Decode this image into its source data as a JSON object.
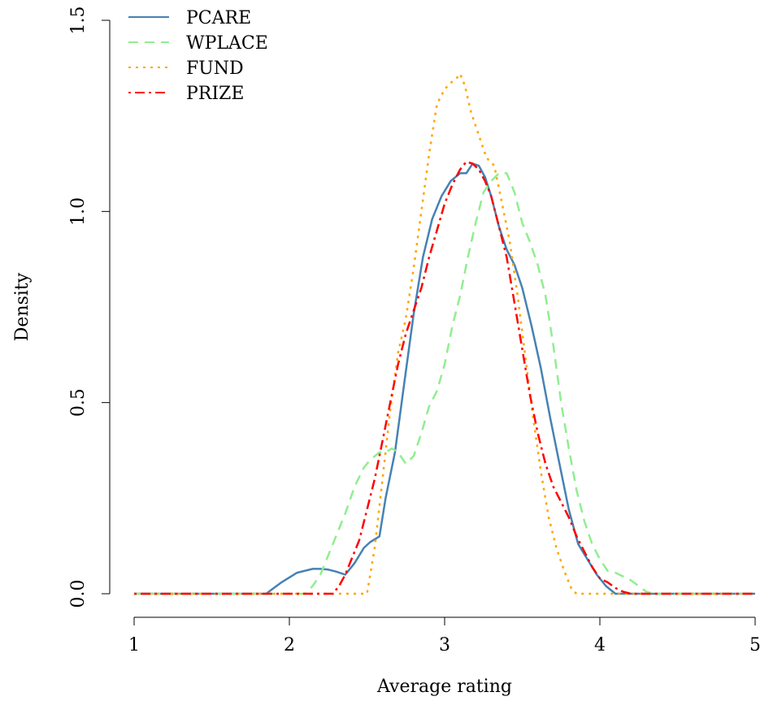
{
  "chart_data": {
    "type": "line",
    "xlabel": "Average rating",
    "ylabel": "Density",
    "xlim": [
      1,
      5
    ],
    "ylim": [
      0,
      1.5
    ],
    "xticks": [
      "1",
      "2",
      "3",
      "4",
      "5"
    ],
    "yticks": [
      "0.0",
      "0.5",
      "1.0",
      "1.5"
    ],
    "grid": false,
    "legend_position": "top-left",
    "series": [
      {
        "name": "PCARE",
        "color": "#4682b4",
        "dash": "solid",
        "x": [
          1.0,
          1.85,
          1.95,
          2.05,
          2.15,
          2.2,
          2.25,
          2.3,
          2.36,
          2.42,
          2.48,
          2.52,
          2.58,
          2.62,
          2.68,
          2.74,
          2.8,
          2.86,
          2.92,
          2.98,
          3.04,
          3.1,
          3.14,
          3.18,
          3.22,
          3.26,
          3.3,
          3.35,
          3.4,
          3.45,
          3.5,
          3.56,
          3.62,
          3.68,
          3.74,
          3.8,
          3.86,
          3.92,
          3.98,
          4.04,
          4.1,
          5.0
        ],
        "y": [
          0.0,
          0.0,
          0.03,
          0.055,
          0.065,
          0.065,
          0.063,
          0.058,
          0.05,
          0.08,
          0.12,
          0.135,
          0.15,
          0.25,
          0.37,
          0.55,
          0.73,
          0.88,
          0.98,
          1.04,
          1.08,
          1.1,
          1.1,
          1.125,
          1.12,
          1.09,
          1.04,
          0.96,
          0.9,
          0.86,
          0.8,
          0.7,
          0.59,
          0.46,
          0.34,
          0.22,
          0.13,
          0.09,
          0.05,
          0.02,
          0.0,
          0.0
        ]
      },
      {
        "name": "WPLACE",
        "color": "#90ee90",
        "dash": "dashed",
        "x": [
          1.0,
          2.1,
          2.15,
          2.2,
          2.25,
          2.3,
          2.36,
          2.42,
          2.48,
          2.52,
          2.58,
          2.62,
          2.66,
          2.7,
          2.75,
          2.8,
          2.85,
          2.9,
          2.95,
          3.0,
          3.05,
          3.1,
          3.15,
          3.2,
          3.25,
          3.3,
          3.35,
          3.4,
          3.45,
          3.5,
          3.55,
          3.6,
          3.65,
          3.7,
          3.75,
          3.8,
          3.85,
          3.9,
          3.95,
          4.0,
          4.05,
          4.1,
          4.15,
          4.2,
          4.25,
          4.3,
          4.35,
          5.0
        ],
        "y": [
          0.0,
          0.0,
          0.02,
          0.05,
          0.1,
          0.15,
          0.21,
          0.28,
          0.33,
          0.35,
          0.37,
          0.37,
          0.38,
          0.37,
          0.34,
          0.36,
          0.42,
          0.49,
          0.53,
          0.6,
          0.7,
          0.78,
          0.88,
          0.97,
          1.05,
          1.08,
          1.1,
          1.1,
          1.05,
          0.97,
          0.92,
          0.86,
          0.78,
          0.65,
          0.5,
          0.38,
          0.27,
          0.19,
          0.13,
          0.09,
          0.06,
          0.055,
          0.045,
          0.035,
          0.02,
          0.005,
          0.0,
          0.0
        ]
      },
      {
        "name": "FUND",
        "color": "#ffa500",
        "dash": "dotted",
        "x": [
          1.0,
          2.5,
          2.55,
          2.6,
          2.65,
          2.7,
          2.75,
          2.8,
          2.85,
          2.9,
          2.95,
          3.0,
          3.05,
          3.08,
          3.1,
          3.13,
          3.17,
          3.22,
          3.27,
          3.32,
          3.37,
          3.42,
          3.47,
          3.52,
          3.57,
          3.62,
          3.67,
          3.72,
          3.77,
          3.82,
          3.85,
          5.0
        ],
        "y": [
          0.0,
          0.0,
          0.12,
          0.3,
          0.48,
          0.63,
          0.72,
          0.85,
          1.0,
          1.15,
          1.28,
          1.32,
          1.34,
          1.35,
          1.36,
          1.33,
          1.26,
          1.2,
          1.14,
          1.12,
          1.02,
          0.92,
          0.78,
          0.62,
          0.46,
          0.32,
          0.2,
          0.12,
          0.06,
          0.01,
          0.0,
          0.0
        ]
      },
      {
        "name": "PRIZE",
        "color": "#ff0000",
        "dash": "dashdot",
        "x": [
          1.0,
          2.28,
          2.32,
          2.36,
          2.4,
          2.45,
          2.5,
          2.55,
          2.6,
          2.65,
          2.7,
          2.75,
          2.8,
          2.85,
          2.9,
          2.95,
          3.0,
          3.05,
          3.1,
          3.14,
          3.18,
          3.22,
          3.26,
          3.3,
          3.35,
          3.4,
          3.45,
          3.5,
          3.55,
          3.6,
          3.65,
          3.7,
          3.75,
          3.8,
          3.85,
          3.9,
          3.95,
          4.0,
          4.05,
          4.1,
          4.15,
          4.2,
          5.0
        ],
        "y": [
          0.0,
          0.0,
          0.02,
          0.05,
          0.09,
          0.14,
          0.22,
          0.3,
          0.4,
          0.5,
          0.6,
          0.68,
          0.74,
          0.8,
          0.88,
          0.95,
          1.02,
          1.07,
          1.11,
          1.13,
          1.125,
          1.11,
          1.08,
          1.04,
          0.96,
          0.88,
          0.76,
          0.64,
          0.52,
          0.42,
          0.34,
          0.28,
          0.24,
          0.2,
          0.15,
          0.11,
          0.07,
          0.04,
          0.03,
          0.015,
          0.005,
          0.0,
          0.0
        ]
      }
    ]
  }
}
